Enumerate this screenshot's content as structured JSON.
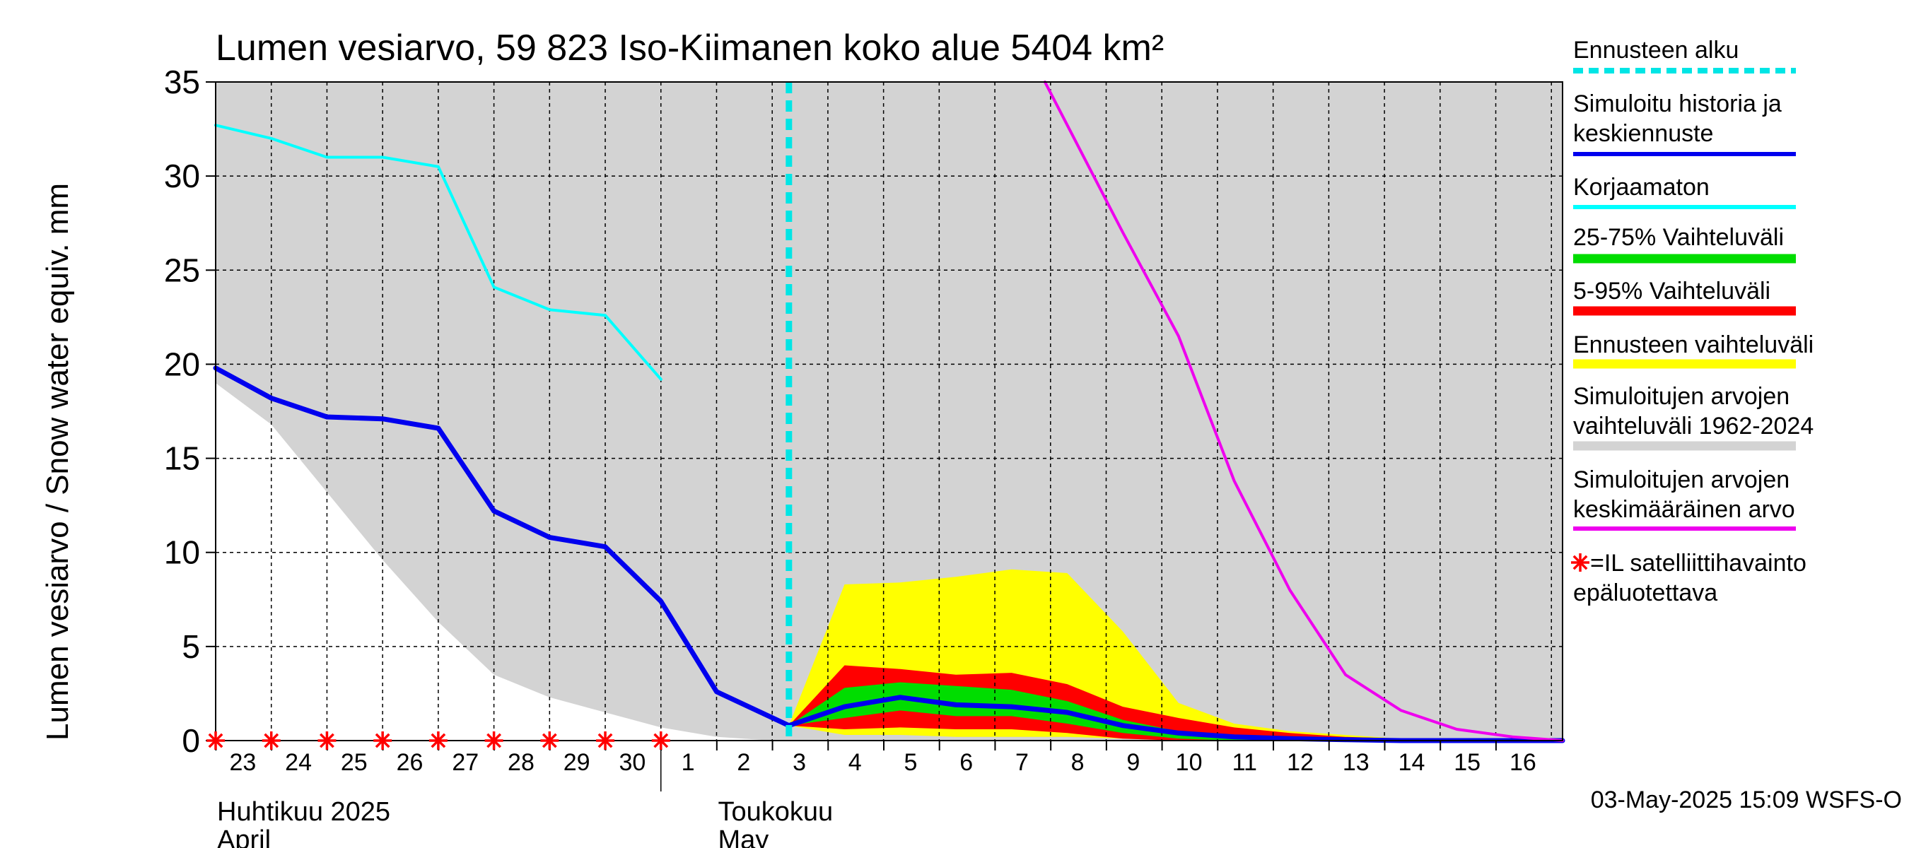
{
  "chart_data": {
    "type": "area",
    "title": "Lumen vesiarvo, 59 823 Iso-Kiimanen koko alue 5404 km²",
    "ylabel": "Lumen vesiarvo / Snow water equiv.    mm",
    "ylim": [
      0,
      35
    ],
    "yticks": [
      0,
      5,
      10,
      15,
      20,
      25,
      30,
      35
    ],
    "xlim": [
      -10.5,
      13.7
    ],
    "grid": true,
    "x_tick_labels": [
      {
        "x": -10,
        "label": "23"
      },
      {
        "x": -9,
        "label": "24"
      },
      {
        "x": -8,
        "label": "25"
      },
      {
        "x": -7,
        "label": "26"
      },
      {
        "x": -6,
        "label": "27"
      },
      {
        "x": -5,
        "label": "28"
      },
      {
        "x": -4,
        "label": "29"
      },
      {
        "x": -3,
        "label": "30"
      },
      {
        "x": -2,
        "label": "1"
      },
      {
        "x": -1,
        "label": "2"
      },
      {
        "x": 0,
        "label": "3"
      },
      {
        "x": 1,
        "label": "4"
      },
      {
        "x": 2,
        "label": "5"
      },
      {
        "x": 3,
        "label": "6"
      },
      {
        "x": 4,
        "label": "7"
      },
      {
        "x": 5,
        "label": "8"
      },
      {
        "x": 6,
        "label": "9"
      },
      {
        "x": 7,
        "label": "10"
      },
      {
        "x": 8,
        "label": "11"
      },
      {
        "x": 9,
        "label": "12"
      },
      {
        "x": 10,
        "label": "13"
      },
      {
        "x": 11,
        "label": "14"
      },
      {
        "x": 12,
        "label": "15"
      },
      {
        "x": 13,
        "label": "16"
      }
    ],
    "month_labels": [
      {
        "x": -10.5,
        "line1": "Huhtikuu  2025",
        "line2": "April"
      },
      {
        "x": -1.5,
        "line1": "Toukokuu",
        "line2": "May"
      }
    ],
    "forecast_start_x": -0.2,
    "series": [
      {
        "name": "Simuloitujen arvojen vaihteluväli 1962-2024",
        "kind": "band",
        "color": "#d3d3d3",
        "x": [
          -10.5,
          -9.5,
          -8.5,
          -7.5,
          -6.5,
          -5.5,
          -4.5,
          -3.5,
          -2.5,
          -1.5,
          -0.5,
          0.5,
          1.5,
          2.5,
          3.5,
          4.5,
          5.5,
          6.5,
          7.5,
          8.5,
          9.5,
          10.5,
          11.5,
          12.5,
          13.5,
          13.7
        ],
        "low": [
          19,
          16.8,
          13.2,
          9.6,
          6.3,
          3.5,
          2.3,
          1.5,
          0.7,
          0.2,
          0,
          0,
          0,
          0,
          0,
          0,
          0,
          0,
          0,
          0,
          0,
          0,
          0,
          0,
          0,
          0
        ],
        "high": [
          35,
          35,
          35,
          35,
          35,
          35,
          35,
          35,
          35,
          35,
          35,
          35,
          35,
          35,
          35,
          35,
          35,
          35,
          35,
          35,
          35,
          35,
          35,
          35,
          35,
          35
        ]
      },
      {
        "name": "Ennusteen vaihteluväli",
        "kind": "band",
        "color": "#ffff00",
        "x": [
          -0.2,
          0.8,
          1.8,
          2.8,
          3.8,
          4.8,
          5.8,
          6.8,
          7.8,
          8.8,
          9.8,
          10.8,
          11.8,
          12.8,
          13.7
        ],
        "low": [
          0.8,
          0.3,
          0.3,
          0.2,
          0.2,
          0.2,
          0.1,
          0,
          0,
          0,
          0,
          0,
          0,
          0,
          0
        ],
        "high": [
          0.8,
          8.3,
          8.4,
          8.7,
          9.1,
          8.9,
          5.8,
          2.0,
          0.9,
          0.5,
          0.3,
          0.1,
          0.1,
          0.05,
          0
        ]
      },
      {
        "name": "5-95% Vaihteluväli",
        "kind": "band",
        "color": "#ff0000",
        "x": [
          -0.2,
          0.8,
          1.8,
          2.8,
          3.8,
          4.8,
          5.8,
          6.8,
          7.8,
          8.8,
          9.8,
          10.8,
          11.8,
          12.8,
          13.7
        ],
        "low": [
          0.8,
          0.6,
          0.7,
          0.6,
          0.6,
          0.4,
          0.1,
          0,
          0,
          0,
          0,
          0,
          0,
          0,
          0
        ],
        "high": [
          0.8,
          4.0,
          3.8,
          3.5,
          3.6,
          3.0,
          1.8,
          1.2,
          0.7,
          0.4,
          0.2,
          0.1,
          0.05,
          0,
          0
        ]
      },
      {
        "name": "25-75% Vaihteluväli",
        "kind": "band",
        "color": "#00dd00",
        "x": [
          -0.2,
          0.8,
          1.8,
          2.8,
          3.8,
          4.8,
          5.8,
          6.8,
          7.8,
          8.8,
          9.8,
          10.8,
          11.8,
          12.8,
          13.7
        ],
        "low": [
          0.8,
          1.2,
          1.6,
          1.3,
          1.3,
          0.9,
          0.4,
          0.1,
          0,
          0,
          0,
          0,
          0,
          0,
          0
        ],
        "high": [
          0.8,
          2.8,
          3.1,
          2.9,
          2.7,
          2.1,
          1.1,
          0.5,
          0.2,
          0.1,
          0.05,
          0,
          0,
          0,
          0
        ]
      },
      {
        "name": "Simuloitu historia ja keskiennuste",
        "kind": "line",
        "color": "#0000ee",
        "width": 7,
        "x": [
          -10.5,
          -9.5,
          -8.5,
          -7.5,
          -6.5,
          -5.5,
          -4.5,
          -3.5,
          -2.5,
          -1.5,
          -0.2,
          0.8,
          1.8,
          2.8,
          3.8,
          4.8,
          5.8,
          6.8,
          7.8,
          8.8,
          9.8,
          10.8,
          11.8,
          12.8,
          13.7
        ],
        "y": [
          19.8,
          18.2,
          17.2,
          17.1,
          16.6,
          12.2,
          10.8,
          10.3,
          7.4,
          2.6,
          0.8,
          1.8,
          2.3,
          1.9,
          1.8,
          1.5,
          0.8,
          0.4,
          0.2,
          0.1,
          0.05,
          0,
          0,
          0,
          0
        ]
      },
      {
        "name": "Korjaamaton",
        "kind": "line",
        "color": "#00ffff",
        "width": 4,
        "x": [
          -10.5,
          -9.5,
          -8.5,
          -7.5,
          -6.5,
          -5.5,
          -4.5,
          -3.5,
          -2.5
        ],
        "y": [
          32.7,
          32.0,
          31.0,
          31.0,
          30.5,
          24.1,
          22.9,
          22.6,
          19.2
        ]
      },
      {
        "name": "Simuloitujen arvojen keskimääräinen arvo",
        "kind": "line",
        "color": "#ee00ee",
        "width": 4,
        "x": [
          4.4,
          5.8,
          6.8,
          7.8,
          8.8,
          9.8,
          10.8,
          11.8,
          12.8,
          13.7
        ],
        "y": [
          35,
          27.0,
          21.5,
          13.8,
          8.0,
          3.5,
          1.6,
          0.6,
          0.2,
          0
        ]
      }
    ],
    "satellite_marker_x": [
      -10.5,
      -9.5,
      -8.5,
      -7.5,
      -6.5,
      -5.5,
      -4.5,
      -3.5,
      -2.5
    ],
    "legend": {
      "placement": "right",
      "items": [
        {
          "label1": "Ennusteen alku",
          "label2": "",
          "swatch": "dash",
          "color": "#00e5e5"
        },
        {
          "label1": "Simuloitu historia ja",
          "label2": "keskiennuste",
          "swatch": "line",
          "color": "#0000ee"
        },
        {
          "label1": "Korjaamaton",
          "label2": "",
          "swatch": "line",
          "color": "#00ffff"
        },
        {
          "label1": "25-75% Vaihteluväli",
          "label2": "",
          "swatch": "thick",
          "color": "#00dd00"
        },
        {
          "label1": "5-95% Vaihteluväli",
          "label2": "",
          "swatch": "thick",
          "color": "#ff0000"
        },
        {
          "label1": "Ennusteen vaihteluväli",
          "label2": "",
          "swatch": "thick",
          "color": "#ffff00"
        },
        {
          "label1": "Simuloitujen arvojen",
          "label2": "vaihteluväli 1962-2024",
          "swatch": "thick",
          "color": "#d3d3d3"
        },
        {
          "label1": "Simuloitujen arvojen",
          "label2": "keskimääräinen arvo",
          "swatch": "line",
          "color": "#ee00ee"
        },
        {
          "label1": "=IL satelliittihavainto",
          "label2": "epäluotettava",
          "swatch": "star",
          "color": "#ff0000"
        }
      ]
    },
    "footer": "03-May-2025 15:09 WSFS-O"
  }
}
